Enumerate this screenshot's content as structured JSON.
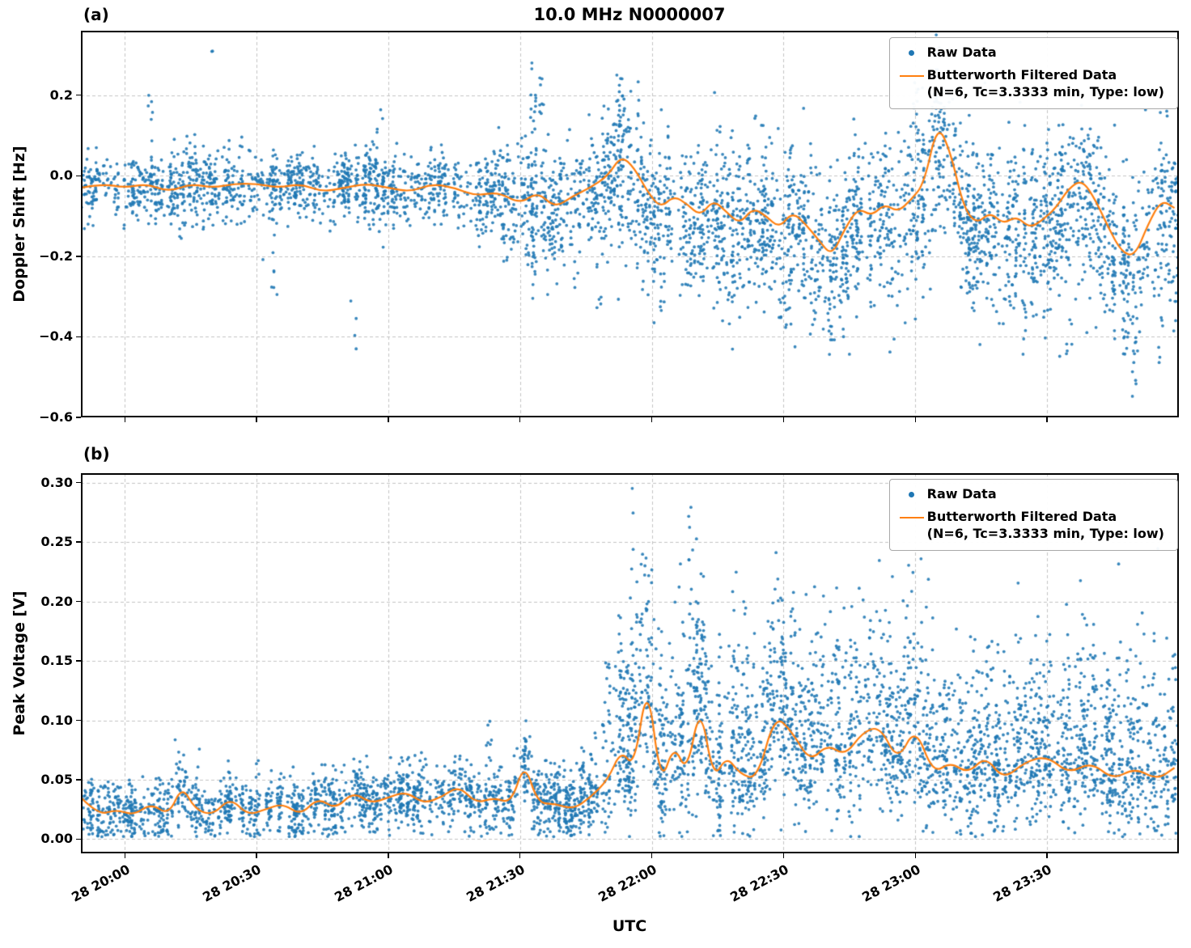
{
  "figure": {
    "panel_labels": {
      "a": "(a)",
      "b": "(b)"
    },
    "colors": {
      "raw": "#1f77b4",
      "filtered": "#ff7f0e",
      "grid": "#c3c3c3",
      "spine": "#000000",
      "background": "#ffffff"
    }
  },
  "legend": {
    "raw_label": "Raw Data",
    "filtered_label": "Butterworth Filtered Data",
    "filtered_sublabel": "(N=6, Tc=3.3333 min, Type: low)"
  },
  "chart_data": [
    {
      "id": "a",
      "type": "scatter+line",
      "title": "10.0 MHz N0000007",
      "ylabel": "Doppler Shift [Hz]",
      "xlabel": "",
      "x_unit": "minutes since 28 20:00 UTC",
      "xlim": [
        -10,
        240
      ],
      "ylim": [
        -0.6,
        0.36
      ],
      "xticks": [
        0,
        30,
        60,
        90,
        120,
        150,
        180,
        210
      ],
      "xtick_labels": [
        "28 20:00",
        "28 20:30",
        "28 21:00",
        "28 21:30",
        "28 22:00",
        "28 22:30",
        "28 23:00",
        "28 23:30"
      ],
      "yticks": [
        0.2,
        0.0,
        -0.2,
        -0.4,
        -0.6
      ],
      "ytick_labels": [
        "0.2",
        "0.0",
        "−0.2",
        "−0.4",
        "−0.6"
      ],
      "grid": true,
      "legend_position": "upper right",
      "series": [
        {
          "name": "Raw Data",
          "type": "scatter",
          "color": "#1f77b4",
          "scatter_spec": {
            "segments": [
              {
                "t0": -10,
                "t1": 85,
                "sigma": 0.045,
                "bias": 0,
                "pts": 1400
              },
              {
                "t0": 85,
                "t1": 112,
                "sigma": 0.075,
                "bias": -0.01,
                "pts": 500
              },
              {
                "t0": 112,
                "t1": 240,
                "sigma": 0.105,
                "bias": -0.03,
                "pts": 2600
              }
            ],
            "streaks": [
              [
                20,
                0.29,
                0.315,
                2
              ],
              [
                6,
                0.12,
                0.22,
                5
              ],
              [
                34,
                -0.3,
                -0.18,
                6
              ],
              [
                52,
                -0.43,
                -0.3,
                4
              ],
              [
                58,
                0.1,
                0.17,
                4
              ],
              [
                93,
                -0.4,
                0.28,
                26
              ],
              [
                95,
                0.1,
                0.25,
                8
              ],
              [
                113,
                0.12,
                0.26,
                8
              ],
              [
                108,
                -0.35,
                -0.2,
                6
              ],
              [
                150,
                -0.38,
                -0.25,
                7
              ],
              [
                160,
                -0.4,
                -0.28,
                6
              ],
              [
                170,
                -0.36,
                -0.22,
                6
              ],
              [
                180,
                0.1,
                0.27,
                10
              ],
              [
                186,
                0.1,
                0.22,
                6
              ],
              [
                205,
                -0.45,
                -0.3,
                7
              ],
              [
                215,
                -0.47,
                -0.33,
                6
              ],
              [
                225,
                -0.42,
                -0.28,
                6
              ],
              [
                230,
                -0.55,
                -0.38,
                8
              ],
              [
                236,
                -0.5,
                -0.35,
                6
              ]
            ]
          }
        },
        {
          "name": "Butterworth Filtered Data (N=6, Tc=3.3333 min, Type: low)",
          "type": "line",
          "color": "#ff7f0e",
          "t": [
            -10,
            -5,
            0,
            5,
            10,
            15,
            20,
            25,
            30,
            35,
            40,
            45,
            50,
            55,
            60,
            65,
            70,
            75,
            80,
            85,
            90,
            94,
            98,
            102,
            106,
            110,
            113,
            116,
            119,
            122,
            125,
            128,
            131,
            134,
            137,
            140,
            143,
            146,
            149,
            152,
            155,
            158,
            161,
            164,
            167,
            170,
            173,
            176,
            179,
            182,
            185,
            188,
            191,
            194,
            197,
            200,
            203,
            206,
            209,
            212,
            215,
            218,
            221,
            224,
            227,
            230,
            233,
            236,
            239
          ],
          "y": [
            -0.03,
            -0.02,
            -0.03,
            -0.02,
            -0.04,
            -0.02,
            -0.03,
            -0.02,
            -0.02,
            -0.03,
            -0.02,
            -0.04,
            -0.03,
            -0.02,
            -0.03,
            -0.04,
            -0.02,
            -0.03,
            -0.05,
            -0.04,
            -0.07,
            -0.04,
            -0.08,
            -0.05,
            -0.03,
            0.0,
            0.05,
            0.02,
            -0.04,
            -0.08,
            -0.05,
            -0.07,
            -0.1,
            -0.06,
            -0.09,
            -0.12,
            -0.08,
            -0.1,
            -0.13,
            -0.09,
            -0.12,
            -0.16,
            -0.2,
            -0.13,
            -0.08,
            -0.1,
            -0.07,
            -0.09,
            -0.06,
            -0.02,
            0.13,
            0.06,
            -0.08,
            -0.12,
            -0.09,
            -0.12,
            -0.1,
            -0.13,
            -0.11,
            -0.08,
            -0.03,
            -0.01,
            -0.06,
            -0.13,
            -0.19,
            -0.2,
            -0.12,
            -0.06,
            -0.08
          ]
        }
      ]
    },
    {
      "id": "b",
      "type": "scatter+line",
      "title": "",
      "ylabel": "Peak Voltage [V]",
      "xlabel": "UTC",
      "x_unit": "minutes since 28 20:00 UTC",
      "xlim": [
        -10,
        240
      ],
      "ylim": [
        -0.012,
        0.308
      ],
      "xticks": [
        0,
        30,
        60,
        90,
        120,
        150,
        180,
        210
      ],
      "xtick_labels": [
        "28 20:00",
        "28 20:30",
        "28 21:00",
        "28 21:30",
        "28 22:00",
        "28 22:30",
        "28 23:00",
        "28 23:30"
      ],
      "yticks": [
        0.0,
        0.05,
        0.1,
        0.15,
        0.2,
        0.25,
        0.3
      ],
      "ytick_labels": [
        "0.00",
        "0.05",
        "0.10",
        "0.15",
        "0.20",
        "0.25",
        "0.30"
      ],
      "grid": true,
      "legend_position": "upper right",
      "series": [
        {
          "name": "Raw Data",
          "type": "scatter",
          "color": "#1f77b4",
          "scatter_spec": {
            "clip_low": 0.002,
            "segments": [
              {
                "t0": -10,
                "t1": 88,
                "sigma": 0.013,
                "bias": 0,
                "pts": 1500
              },
              {
                "t0": 88,
                "t1": 108,
                "sigma": 0.016,
                "bias": 0,
                "pts": 400
              },
              {
                "t0": 108,
                "t1": 240,
                "sigma": 0.028,
                "bias": 0.005,
                "upmult": 1.8,
                "pts": 2800
              }
            ],
            "streaks": [
              [
                12,
                0.05,
                0.085,
                6
              ],
              [
                30,
                0.05,
                0.068,
                4
              ],
              [
                63,
                0.05,
                0.073,
                5
              ],
              [
                68,
                0.05,
                0.075,
                5
              ],
              [
                83,
                0.06,
                0.105,
                7
              ],
              [
                90,
                0.05,
                0.08,
                5
              ],
              [
                104,
                0.05,
                0.08,
                5
              ],
              [
                110,
                0.08,
                0.165,
                9
              ],
              [
                113,
                0.08,
                0.17,
                8
              ],
              [
                116,
                0.1,
                0.3,
                16
              ],
              [
                118,
                0.1,
                0.26,
                12
              ],
              [
                122,
                0.06,
                0.13,
                6
              ],
              [
                126,
                0.07,
                0.135,
                6
              ],
              [
                129,
                0.1,
                0.28,
                14
              ],
              [
                131,
                0.08,
                0.19,
                8
              ],
              [
                136,
                0.06,
                0.12,
                5
              ],
              [
                139,
                0.09,
                0.225,
                11
              ],
              [
                141,
                0.08,
                0.21,
                9
              ],
              [
                146,
                0.07,
                0.14,
                6
              ],
              [
                149,
                0.09,
                0.21,
                9
              ],
              [
                152,
                0.07,
                0.14,
                6
              ],
              [
                157,
                0.06,
                0.135,
                6
              ],
              [
                162,
                0.08,
                0.17,
                7
              ],
              [
                166,
                0.08,
                0.2,
                8
              ],
              [
                170,
                0.08,
                0.19,
                8
              ],
              [
                174,
                0.07,
                0.165,
                7
              ],
              [
                179,
                0.09,
                0.245,
                12
              ],
              [
                183,
                0.06,
                0.125,
                5
              ],
              [
                187,
                0.07,
                0.14,
                6
              ],
              [
                191,
                0.06,
                0.12,
                5
              ],
              [
                195,
                0.07,
                0.135,
                6
              ],
              [
                199,
                0.06,
                0.12,
                5
              ],
              [
                204,
                0.06,
                0.11,
                5
              ],
              [
                209,
                0.06,
                0.12,
                5
              ],
              [
                214,
                0.07,
                0.13,
                6
              ],
              [
                219,
                0.06,
                0.12,
                5
              ],
              [
                224,
                0.06,
                0.11,
                5
              ],
              [
                229,
                0.06,
                0.12,
                5
              ],
              [
                234,
                0.05,
                0.1,
                4
              ],
              [
                238,
                0.06,
                0.12,
                5
              ]
            ]
          }
        },
        {
          "name": "Butterworth Filtered Data (N=6, Tc=3.3333 min, Type: low)",
          "type": "line",
          "color": "#ff7f0e",
          "t": [
            -10,
            -6,
            -2,
            2,
            6,
            10,
            13,
            16,
            20,
            24,
            28,
            32,
            36,
            40,
            44,
            48,
            52,
            56,
            60,
            64,
            68,
            72,
            76,
            80,
            84,
            88,
            91,
            94,
            98,
            102,
            106,
            110,
            113,
            116,
            119,
            122,
            125,
            128,
            131,
            134,
            137,
            140,
            144,
            148,
            152,
            156,
            160,
            164,
            168,
            172,
            176,
            180,
            184,
            188,
            192,
            196,
            200,
            205,
            210,
            215,
            220,
            225,
            230,
            235,
            239
          ],
          "y": [
            0.035,
            0.02,
            0.025,
            0.02,
            0.03,
            0.02,
            0.045,
            0.025,
            0.02,
            0.035,
            0.02,
            0.025,
            0.03,
            0.02,
            0.035,
            0.025,
            0.04,
            0.03,
            0.035,
            0.04,
            0.03,
            0.035,
            0.045,
            0.03,
            0.035,
            0.03,
            0.065,
            0.03,
            0.03,
            0.025,
            0.035,
            0.05,
            0.075,
            0.06,
            0.135,
            0.045,
            0.08,
            0.055,
            0.115,
            0.05,
            0.07,
            0.055,
            0.05,
            0.105,
            0.09,
            0.065,
            0.08,
            0.07,
            0.09,
            0.095,
            0.065,
            0.095,
            0.055,
            0.065,
            0.055,
            0.07,
            0.05,
            0.065,
            0.07,
            0.055,
            0.065,
            0.05,
            0.06,
            0.05,
            0.06
          ]
        }
      ]
    }
  ]
}
